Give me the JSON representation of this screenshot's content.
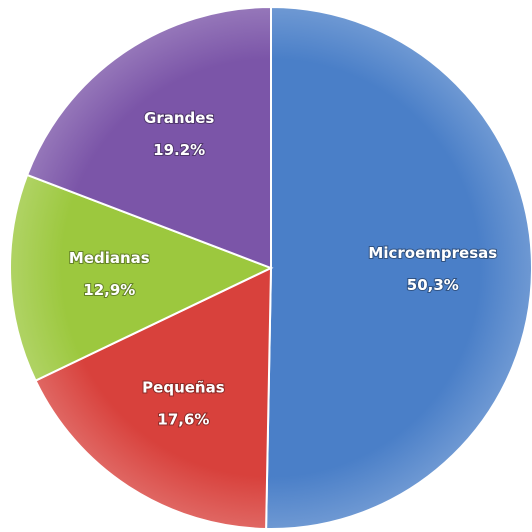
{
  "chart_data": {
    "type": "pie",
    "categories": [
      "Microempresas",
      "Pequeñas",
      "Medianas",
      "Grandes"
    ],
    "values": [
      50.3,
      17.6,
      12.9,
      19.2
    ],
    "value_labels": [
      "50,3%",
      "17,6%",
      "12,9%",
      "19.2%"
    ],
    "colors": [
      "#4a7fc8",
      "#d8413c",
      "#9cc83e",
      "#7b55a8"
    ]
  }
}
